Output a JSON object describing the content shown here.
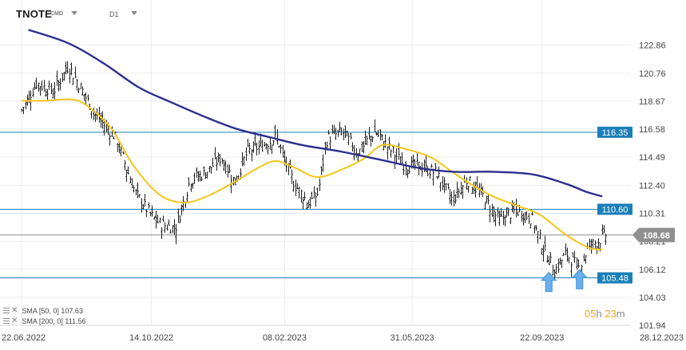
{
  "header": {
    "symbol": "TNOTE",
    "exchange": "CMD",
    "timeframe": "D1"
  },
  "indicators": [
    {
      "label": "SMA [50, 0] 107.63",
      "color": "#f5c518"
    },
    {
      "label": "SMA [200, 0] 111.56",
      "color": "#2a2f8f"
    }
  ],
  "countdown": {
    "hours": "05",
    "h_unit": "h",
    "minutes": "23",
    "m_unit": "m"
  },
  "colors": {
    "candle": "#1f1f1f",
    "sma50": "#f5c518",
    "sma200": "#2a2f8f",
    "level_line": "#1b7fb8",
    "level_label_bg": "#1b7fb8",
    "current_price_line": "#8a8a8a",
    "current_price_bg": "#8f8f8f",
    "grid": "#ececec",
    "arrow": "#6ab0f0"
  },
  "icons": [
    "visibility-icon",
    "close-icon",
    "chevron-down-icon",
    "arrow-up-icon"
  ],
  "chart_data": {
    "type": "candlestick",
    "x_ticks": [
      "22.06.2022",
      "14.10.2022",
      "08.02.2023",
      "31.05.2023",
      "22.09.2023",
      "28.12.2023"
    ],
    "y_ticks": [
      122.86,
      120.76,
      118.67,
      116.58,
      114.49,
      112.4,
      110.31,
      108.21,
      106.12,
      104.03,
      101.94
    ],
    "y_range": [
      101.94,
      124.2
    ],
    "x_range": [
      "22.06.2022",
      "28.12.2023"
    ],
    "grid": true,
    "horizontal_levels": [
      {
        "value": 116.35,
        "label": "116.35"
      },
      {
        "value": 110.6,
        "label": "110.60"
      },
      {
        "value": 105.48,
        "label": "105.48"
      }
    ],
    "current_price": {
      "value": 108.68,
      "label": "108.68"
    },
    "markers": [
      {
        "type": "arrow-up",
        "date": "28.09.2023",
        "value": 105.0
      },
      {
        "type": "arrow-up",
        "date": "25.10.2023",
        "value": 105.2
      }
    ],
    "close_path": [
      [
        "22.06.2022",
        118.0
      ],
      [
        "05.07.2022",
        120.0
      ],
      [
        "20.07.2022",
        119.4
      ],
      [
        "02.08.2022",
        121.3
      ],
      [
        "12.08.2022",
        119.8
      ],
      [
        "26.08.2022",
        117.6
      ],
      [
        "12.09.2022",
        116.0
      ],
      [
        "30.09.2022",
        111.8
      ],
      [
        "14.10.2022",
        110.1
      ],
      [
        "21.10.2022",
        109.5
      ],
      [
        "04.11.2022",
        109.2
      ],
      [
        "17.11.2022",
        112.8
      ],
      [
        "30.11.2022",
        113.3
      ],
      [
        "14.12.2022",
        114.5
      ],
      [
        "26.12.2022",
        112.6
      ],
      [
        "06.01.2023",
        114.9
      ],
      [
        "20.01.2023",
        115.4
      ],
      [
        "01.02.2023",
        116.0
      ],
      [
        "08.02.2023",
        114.1
      ],
      [
        "17.02.2023",
        112.4
      ],
      [
        "01.03.2023",
        111.0
      ],
      [
        "09.03.2023",
        111.8
      ],
      [
        "17.03.2023",
        115.9
      ],
      [
        "31.03.2023",
        116.4
      ],
      [
        "13.04.2023",
        114.8
      ],
      [
        "28.04.2023",
        116.4
      ],
      [
        "10.05.2023",
        115.2
      ],
      [
        "24.05.2023",
        113.9
      ],
      [
        "06.06.2023",
        113.8
      ],
      [
        "21.06.2023",
        113.3
      ],
      [
        "05.07.2023",
        111.3
      ],
      [
        "18.07.2023",
        112.8
      ],
      [
        "01.08.2023",
        111.6
      ],
      [
        "15.08.2023",
        109.8
      ],
      [
        "30.08.2023",
        110.5
      ],
      [
        "13.09.2023",
        109.9
      ],
      [
        "22.09.2023",
        107.9
      ],
      [
        "03.10.2023",
        106.0
      ],
      [
        "13.10.2023",
        107.3
      ],
      [
        "25.10.2023",
        106.1
      ],
      [
        "02.11.2023",
        107.9
      ],
      [
        "10.11.2023",
        108.2
      ],
      [
        "17.11.2023",
        108.7
      ]
    ],
    "series": [
      {
        "name": "SMA [50, 0]",
        "last": 107.63,
        "path": [
          [
            "22.06.2022",
            118.7
          ],
          [
            "12.07.2022",
            118.7
          ],
          [
            "05.08.2022",
            118.8
          ],
          [
            "19.08.2022",
            118.3
          ],
          [
            "09.09.2022",
            116.6
          ],
          [
            "28.09.2022",
            113.9
          ],
          [
            "21.10.2022",
            111.7
          ],
          [
            "11.11.2022",
            111.1
          ],
          [
            "30.11.2022",
            111.5
          ],
          [
            "23.12.2022",
            112.5
          ],
          [
            "18.01.2023",
            113.8
          ],
          [
            "01.02.2023",
            114.2
          ],
          [
            "17.02.2023",
            113.7
          ],
          [
            "09.03.2023",
            113.0
          ],
          [
            "31.03.2023",
            113.6
          ],
          [
            "19.04.2023",
            114.4
          ],
          [
            "05.05.2023",
            115.4
          ],
          [
            "25.05.2023",
            115.1
          ],
          [
            "16.06.2023",
            114.5
          ],
          [
            "05.07.2023",
            113.4
          ],
          [
            "21.07.2023",
            112.5
          ],
          [
            "09.08.2023",
            111.6
          ],
          [
            "30.08.2023",
            110.9
          ],
          [
            "20.09.2023",
            110.2
          ],
          [
            "13.10.2023",
            108.7
          ],
          [
            "03.11.2023",
            107.7
          ],
          [
            "14.11.2023",
            107.63
          ]
        ]
      },
      {
        "name": "SMA [200, 0]",
        "last": 111.56,
        "path": [
          [
            "28.06.2022",
            124.0
          ],
          [
            "02.08.2022",
            123.0
          ],
          [
            "02.09.2022",
            121.5
          ],
          [
            "03.10.2022",
            119.7
          ],
          [
            "31.10.2022",
            118.6
          ],
          [
            "30.11.2022",
            117.5
          ],
          [
            "28.12.2022",
            116.6
          ],
          [
            "25.01.2023",
            116.0
          ],
          [
            "23.02.2023",
            115.4
          ],
          [
            "30.03.2023",
            114.9
          ],
          [
            "03.05.2023",
            114.3
          ],
          [
            "05.06.2023",
            113.7
          ],
          [
            "06.07.2023",
            113.4
          ],
          [
            "10.08.2023",
            113.4
          ],
          [
            "14.09.2023",
            113.2
          ],
          [
            "13.10.2023",
            112.5
          ],
          [
            "31.10.2023",
            111.9
          ],
          [
            "14.11.2023",
            111.56
          ]
        ]
      }
    ]
  }
}
